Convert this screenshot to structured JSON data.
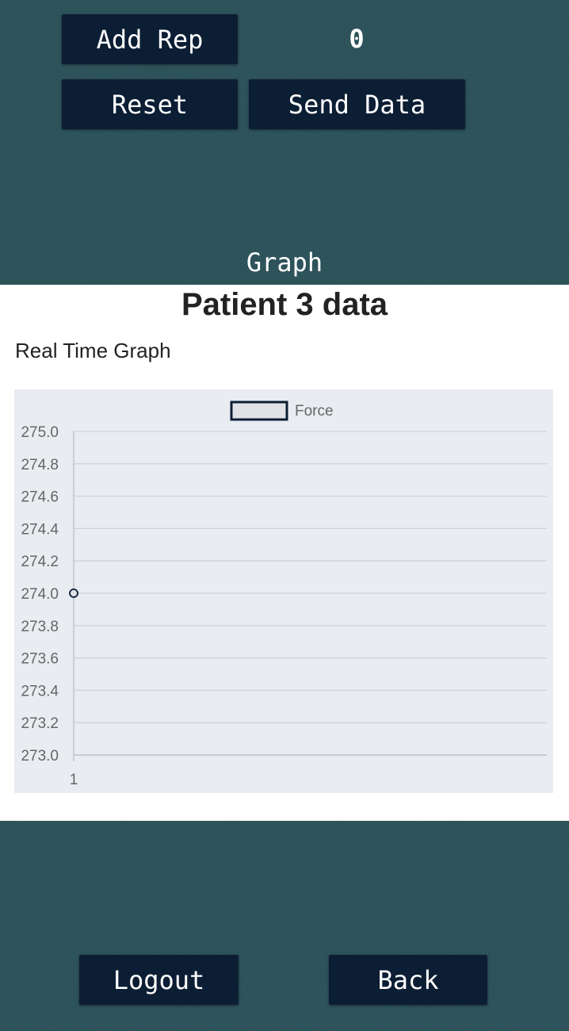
{
  "controls": {
    "add_rep_label": "Add Rep",
    "rep_count": "0",
    "reset_label": "Reset",
    "send_data_label": "Send Data"
  },
  "graph_heading": "Graph",
  "patient_title": "Patient 3 data",
  "graph_subtitle": "Real Time Graph",
  "chart_data": {
    "type": "line",
    "title": "",
    "xlabel": "",
    "ylabel": "",
    "categories": [
      "1"
    ],
    "series": [
      {
        "name": "Force",
        "values": [
          274.0
        ],
        "color": "#0c1e34"
      }
    ],
    "ylim": [
      273.0,
      275.0
    ],
    "yticks": [
      "275.0",
      "274.8",
      "274.6",
      "274.4",
      "274.2",
      "274.0",
      "273.8",
      "273.6",
      "273.4",
      "273.2",
      "273.0"
    ],
    "grid": true,
    "legend": "top"
  },
  "footer": {
    "logout_label": "Logout",
    "back_label": "Back"
  },
  "colors": {
    "background": "#2b5159",
    "button": "#0c1e34",
    "panel": "#ffffff",
    "chart_bg": "#e9ecf1"
  }
}
